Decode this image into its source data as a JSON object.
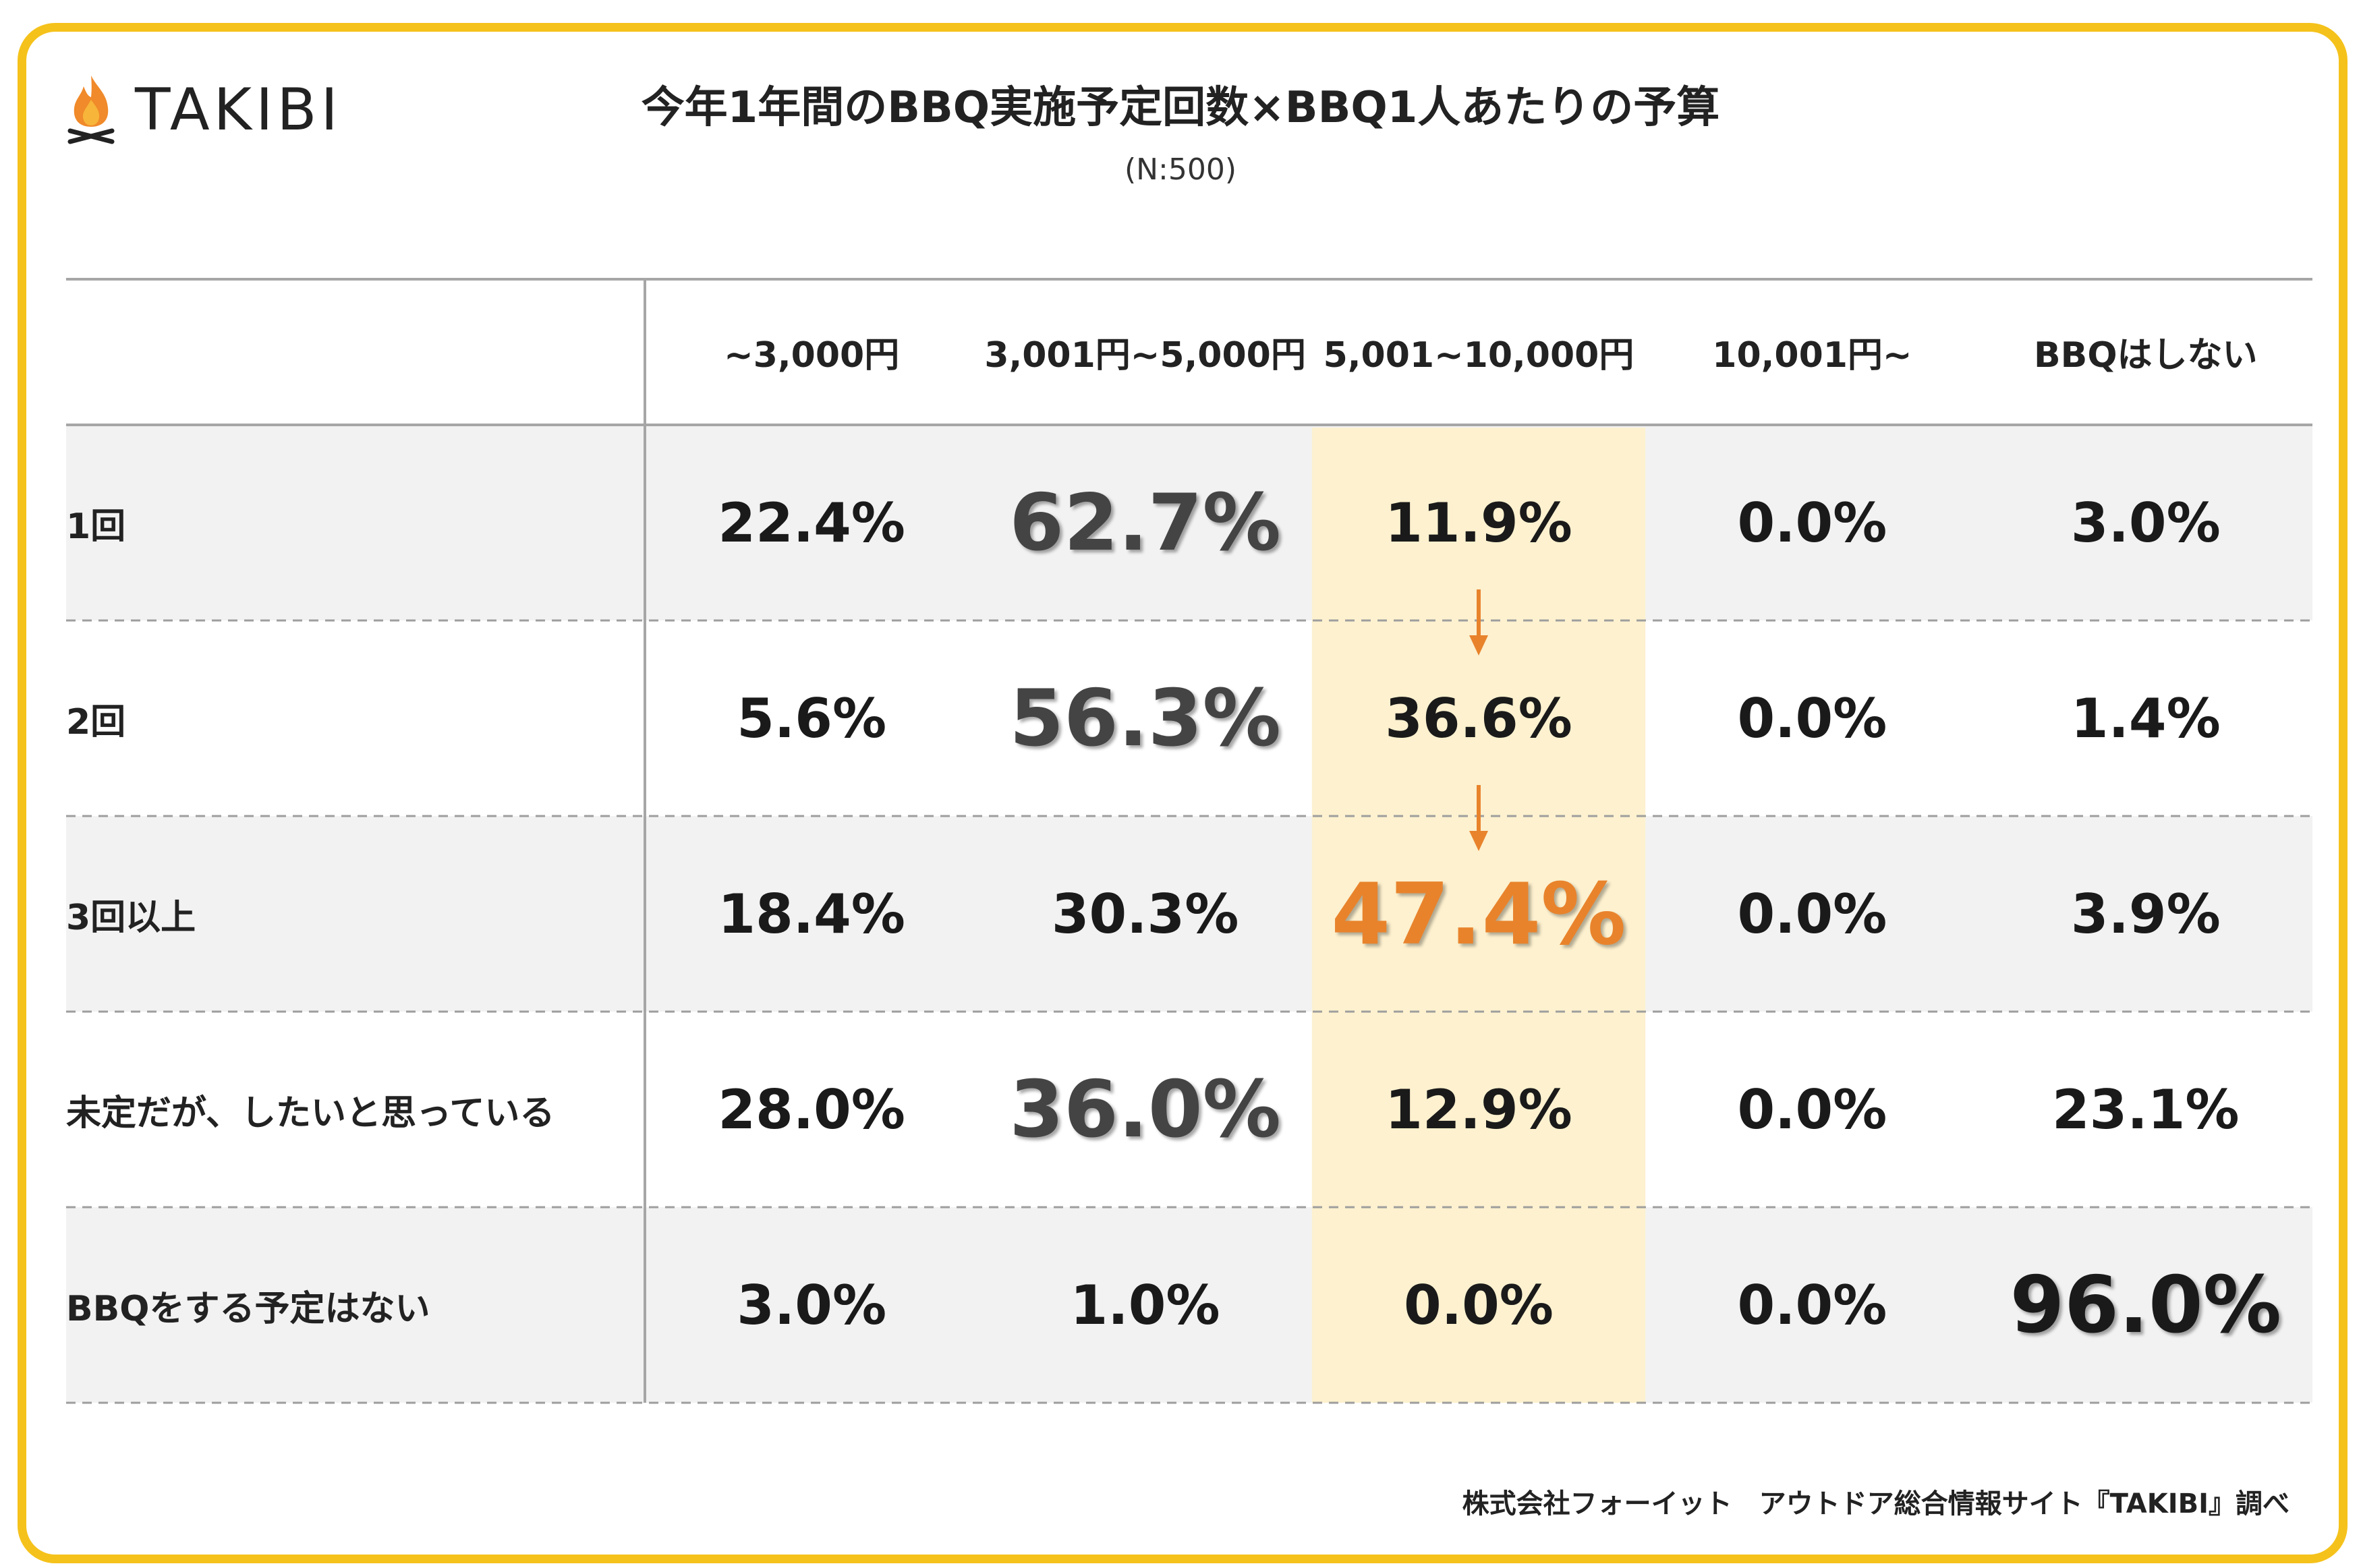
{
  "brand": {
    "logo_text": "TAKIBI",
    "flame_color": "#f08a2a",
    "border_color": "#f5c21b"
  },
  "header": {
    "title": "今年1年間のBBQ実施予定回数×BBQ1人あたりの予算",
    "subtitle": "(N:500)"
  },
  "chart_data": {
    "type": "table",
    "title": "今年1年間のBBQ実施予定回数×BBQ1人あたりの予算",
    "subtitle": "(N:500)",
    "columns": [
      "~3,000円",
      "3,001円~5,000円",
      "5,001~10,000円",
      "10,001円~",
      "BBQはしない"
    ],
    "rows": [
      {
        "label": "1回",
        "values": [
          "22.4%",
          "62.7%",
          "11.9%",
          "0.0%",
          "3.0%"
        ]
      },
      {
        "label": "2回",
        "values": [
          "5.6%",
          "56.3%",
          "36.6%",
          "0.0%",
          "1.4%"
        ]
      },
      {
        "label": "3回以上",
        "values": [
          "18.4%",
          "30.3%",
          "47.4%",
          "0.0%",
          "3.9%"
        ]
      },
      {
        "label": "未定だが、したいと思っている",
        "values": [
          "28.0%",
          "36.0%",
          "12.9%",
          "0.0%",
          "23.1%"
        ]
      },
      {
        "label": "BBQをする予定はない",
        "values": [
          "3.0%",
          "1.0%",
          "0.0%",
          "0.0%",
          "96.0%"
        ]
      }
    ],
    "highlight_column": "5,001~10,000円",
    "highlight_color": "#fdf1cf",
    "accent_color": "#e8832c",
    "row_shade_color": "#f2f2f2"
  },
  "footer": {
    "source": "株式会社フォーイット　アウトドア総合情報サイト『TAKIBI』調べ"
  }
}
